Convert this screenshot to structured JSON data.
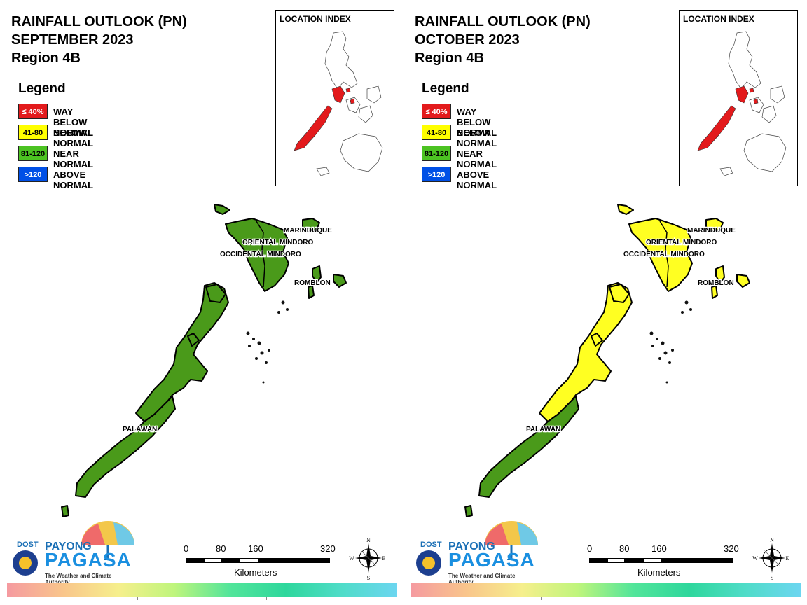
{
  "legend": {
    "title": "Legend",
    "items": [
      {
        "range": "≤ 40%",
        "label": "WAY BELOW NORMAL",
        "color": "#e31a1c",
        "text_color": "#ffffff"
      },
      {
        "range": "41-80",
        "label": "BELOW NORMAL",
        "color": "#ffff00",
        "text_color": "#000000"
      },
      {
        "range": "81-120",
        "label": "NEAR NORMAL",
        "color": "#4cc322",
        "text_color": "#000000"
      },
      {
        "range": ">120",
        "label": "ABOVE NORMAL",
        "color": "#0050e6",
        "text_color": "#ffffff"
      }
    ]
  },
  "inset": {
    "label": "LOCATION INDEX",
    "highlight_color": "#e31a1c"
  },
  "labels": {
    "marinduque": "MARINDUQUE",
    "oriental_mindoro": "ORIENTAL MINDORO",
    "occidental_mindoro": "OCCIDENTAL MINDORO",
    "romblon": "ROMBLON",
    "palawan": "PALAWAN"
  },
  "logo": {
    "dost": "DOST",
    "payong": "PAYONG",
    "pagasa": "PAGASA",
    "tagline": "The Weather and Climate Authority"
  },
  "scale": {
    "ticks": [
      "0",
      "80",
      "160",
      "320"
    ],
    "unit": "Kilometers"
  },
  "compass": {
    "n": "N",
    "e": "E",
    "s": "S",
    "w": "W"
  },
  "panels": [
    {
      "title_lines": [
        "RAINFALL OUTLOOK (PN)",
        "SEPTEMBER 2023",
        "Region 4B"
      ],
      "province_category": {
        "north_palawan": "NEAR NORMAL",
        "south_palawan": "NEAR NORMAL",
        "mindoro": "NEAR NORMAL",
        "marinduque": "NEAR NORMAL",
        "romblon": "NEAR NORMAL"
      },
      "fills": {
        "north_palawan": "#4a9a1a",
        "south_palawan": "#4a9a1a",
        "mindoro": "#4a9a1a",
        "marinduque": "#4a9a1a",
        "romblon": "#4a9a1a"
      }
    },
    {
      "title_lines": [
        "RAINFALL OUTLOOK (PN)",
        "OCTOBER 2023",
        "Region 4B"
      ],
      "province_category": {
        "north_palawan": "BELOW NORMAL",
        "south_palawan": "NEAR NORMAL",
        "mindoro": "BELOW NORMAL",
        "marinduque": "BELOW NORMAL",
        "romblon": "BELOW NORMAL"
      },
      "fills": {
        "north_palawan": "#ffff22",
        "south_palawan": "#4a9a1a",
        "mindoro": "#ffff22",
        "marinduque": "#ffff22",
        "romblon": "#ffff22"
      }
    }
  ]
}
